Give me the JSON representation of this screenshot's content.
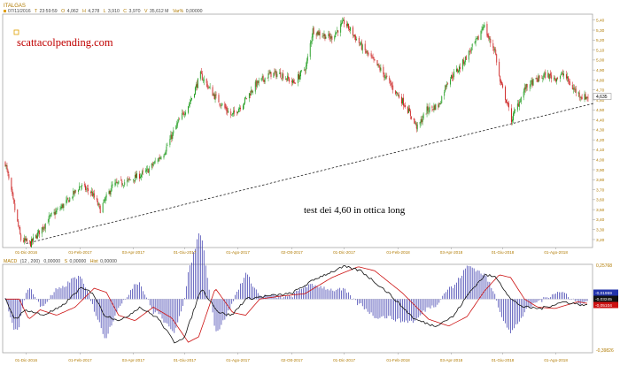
{
  "symbol": "ITALGAS",
  "ohlc_header": {
    "date": "07/11/2016",
    "time": "23:59:59",
    "open": "4,062",
    "high": "4,278",
    "low": "3,910",
    "close": "3,970",
    "volume": "35,612 M",
    "var": "0,00000"
  },
  "ohlc_header_letters": {
    "open": "O",
    "high": "H",
    "low": "L",
    "close": "C",
    "volume": "V",
    "var": "Var%"
  },
  "watermark": "scattacolpending.com",
  "annotation": "test dei 4,60 in ottica long",
  "price_tag": "4,635",
  "macd_header": {
    "label": "MACD",
    "params": "(12 , 200)",
    "macd_value": "0,00000",
    "signal_letter": "S",
    "signal_value": "0,00000",
    "hist_letter": "Hist",
    "hist_value": "0,00000"
  },
  "macd_scale": {
    "top": "0,25768",
    "bottom": "-0,39826"
  },
  "macd_tags": [
    "-0,01959",
    "-0,03245",
    "-0,05104"
  ],
  "colors": {
    "up": "#1a9a1a",
    "down": "#cc1f1f",
    "macd_line": "#111111",
    "signal_line": "#cc1111",
    "histogram": "#3333aa",
    "axis_labels": "#b07a00",
    "trendline": "#222222"
  },
  "chart_data": [
    {
      "type": "candlestick",
      "series_name": "ITALGAS",
      "x_ticks": [
        "01-Dic-2016",
        "01-Feb-2017",
        "03-Apr-2017",
        "01-Giu-2017",
        "01-Ago-2017",
        "02-Ott-2017",
        "01-Dic-2017",
        "01-Feb-2018",
        "03-Apr-2018",
        "01-Giu-2018",
        "01-Ago-2018"
      ],
      "y_ticks": [
        "3,20",
        "3,30",
        "3,40",
        "3,50",
        "3,60",
        "3,70",
        "3,80",
        "3,90",
        "4,00",
        "4,10",
        "4,20",
        "4,30",
        "4,40",
        "4,50",
        "4,60",
        "4,70",
        "4,80",
        "4,90",
        "5,00",
        "5,10",
        "5,20",
        "5,30",
        "5,40"
      ],
      "ylim": [
        3.12,
        5.46
      ],
      "anchors": [
        [
          "2016-11-07",
          3.97
        ],
        [
          "2016-11-25",
          3.2
        ],
        [
          "2016-12-06",
          3.16
        ],
        [
          "2016-12-28",
          3.42
        ],
        [
          "2017-01-17",
          3.58
        ],
        [
          "2017-02-01",
          3.74
        ],
        [
          "2017-02-14",
          3.67
        ],
        [
          "2017-02-24",
          3.5
        ],
        [
          "2017-03-10",
          3.74
        ],
        [
          "2017-03-29",
          3.79
        ],
        [
          "2017-04-18",
          3.88
        ],
        [
          "2017-05-08",
          4.07
        ],
        [
          "2017-05-23",
          4.35
        ],
        [
          "2017-06-07",
          4.58
        ],
        [
          "2017-06-19",
          4.85
        ],
        [
          "2017-07-05",
          4.64
        ],
        [
          "2017-07-25",
          4.44
        ],
        [
          "2017-08-07",
          4.57
        ],
        [
          "2017-08-21",
          4.75
        ],
        [
          "2017-09-07",
          4.86
        ],
        [
          "2017-09-19",
          4.86
        ],
        [
          "2017-10-04",
          4.77
        ],
        [
          "2017-10-18",
          4.93
        ],
        [
          "2017-10-26",
          5.3
        ],
        [
          "2017-11-02",
          5.27
        ],
        [
          "2017-11-16",
          5.22
        ],
        [
          "2017-12-01",
          5.38
        ],
        [
          "2017-12-08",
          5.3
        ],
        [
          "2017-12-22",
          5.12
        ],
        [
          "2018-01-12",
          4.9
        ],
        [
          "2018-01-26",
          4.72
        ],
        [
          "2018-02-09",
          4.55
        ],
        [
          "2018-02-23",
          4.32
        ],
        [
          "2018-03-06",
          4.5
        ],
        [
          "2018-03-20",
          4.55
        ],
        [
          "2018-03-29",
          4.78
        ],
        [
          "2018-04-13",
          4.93
        ],
        [
          "2018-04-25",
          5.1
        ],
        [
          "2018-05-04",
          5.22
        ],
        [
          "2018-05-10",
          5.36
        ],
        [
          "2018-05-16",
          5.21
        ],
        [
          "2018-05-23",
          5.1
        ],
        [
          "2018-05-29",
          4.78
        ],
        [
          "2018-06-05",
          4.6
        ],
        [
          "2018-06-11",
          4.4
        ],
        [
          "2018-06-18",
          4.55
        ],
        [
          "2018-06-27",
          4.72
        ],
        [
          "2018-07-06",
          4.78
        ],
        [
          "2018-07-20",
          4.85
        ],
        [
          "2018-08-01",
          4.82
        ],
        [
          "2018-08-10",
          4.86
        ],
        [
          "2018-08-20",
          4.72
        ],
        [
          "2018-08-31",
          4.63
        ]
      ],
      "trendline": {
        "from": [
          "2016-12-01",
          3.16
        ],
        "to": [
          "2018-09-07",
          4.56
        ]
      }
    },
    {
      "type": "macd",
      "ylim": [
        -0.39826,
        0.25768
      ],
      "x_ticks": [
        "01-Dic-2016",
        "01-Feb-2017",
        "03-Apr-2017",
        "01-Giu-2017",
        "01-Ago-2017",
        "02-Ott-2017",
        "01-Dic-2017",
        "01-Feb-2018",
        "03-Apr-2018",
        "01-Giu-2018",
        "01-Ago-2018"
      ],
      "macd_anchors": [
        [
          "2016-11-07",
          0.0
        ],
        [
          "2016-11-18",
          -0.15
        ],
        [
          "2016-12-01",
          -0.08
        ],
        [
          "2016-12-20",
          -0.12
        ],
        [
          "2017-01-10",
          -0.06
        ],
        [
          "2017-02-01",
          0.08
        ],
        [
          "2017-02-15",
          0.05
        ],
        [
          "2017-03-01",
          -0.12
        ],
        [
          "2017-03-20",
          -0.16
        ],
        [
          "2017-04-10",
          -0.06
        ],
        [
          "2017-05-01",
          -0.14
        ],
        [
          "2017-05-20",
          -0.32
        ],
        [
          "2017-06-01",
          -0.28
        ],
        [
          "2017-06-20",
          0.08
        ],
        [
          "2017-07-10",
          -0.1
        ],
        [
          "2017-07-25",
          -0.12
        ],
        [
          "2017-08-10",
          0.0
        ],
        [
          "2017-09-01",
          0.02
        ],
        [
          "2017-10-01",
          0.04
        ],
        [
          "2017-11-01",
          0.16
        ],
        [
          "2017-12-01",
          0.24
        ],
        [
          "2017-12-20",
          0.21
        ],
        [
          "2018-01-20",
          0.05
        ],
        [
          "2018-02-20",
          -0.15
        ],
        [
          "2018-03-15",
          -0.2
        ],
        [
          "2018-04-05",
          -0.13
        ],
        [
          "2018-04-25",
          0.06
        ],
        [
          "2018-05-12",
          0.18
        ],
        [
          "2018-05-25",
          0.16
        ],
        [
          "2018-06-10",
          0.0
        ],
        [
          "2018-06-25",
          -0.06
        ],
        [
          "2018-07-15",
          -0.07
        ],
        [
          "2018-08-10",
          -0.02
        ],
        [
          "2018-09-07",
          -0.05
        ]
      ],
      "signal_lag_days": 16
    }
  ]
}
